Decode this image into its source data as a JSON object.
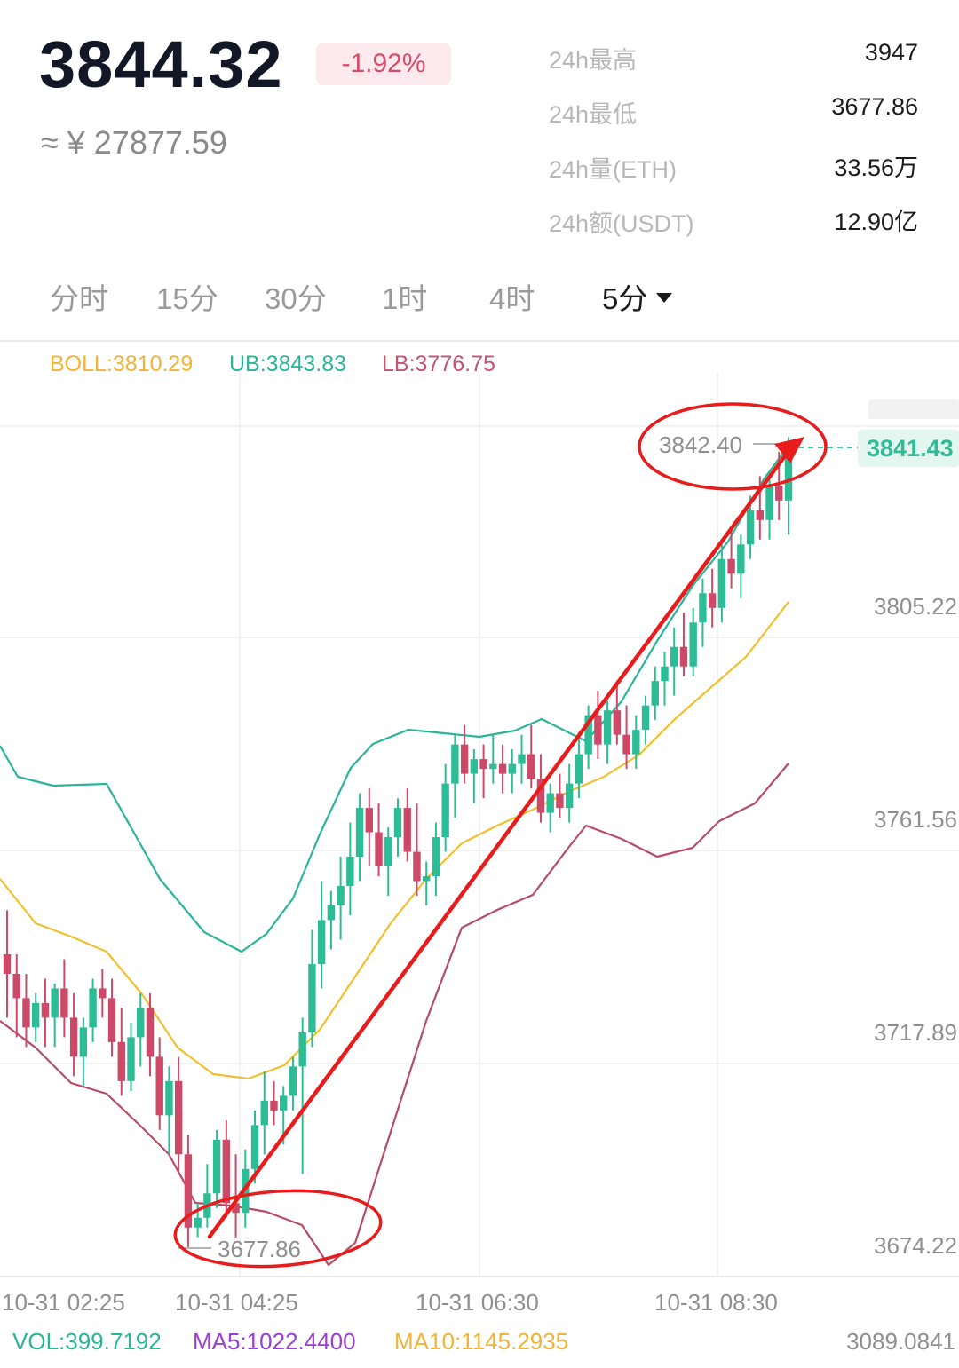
{
  "ticker": {
    "price": "3844.32",
    "change": "-1.92%",
    "cny": "≈ ¥ 27877.59"
  },
  "stats": [
    {
      "label": "24h最高",
      "value": "3947"
    },
    {
      "label": "24h最低",
      "value": "3677.86"
    },
    {
      "label": "24h量(ETH)",
      "value": "33.56万"
    },
    {
      "label": "24h额(USDT)",
      "value": "12.90亿"
    }
  ],
  "tabs": [
    {
      "label": "分时",
      "active": false
    },
    {
      "label": "15分",
      "active": false
    },
    {
      "label": "30分",
      "active": false
    },
    {
      "label": "1时",
      "active": false
    },
    {
      "label": "4时",
      "active": false
    },
    {
      "label": "5分",
      "active": true
    }
  ],
  "boll": {
    "boll": "BOLL:3810.29",
    "ub": "UB:3843.83",
    "lb": "LB:3776.75"
  },
  "colors": {
    "up": "#2dbd96",
    "down": "#cc4a68",
    "boll_mid": "#f0c02f",
    "boll_ub": "#2ab59a",
    "boll_lb": "#b84b66",
    "annotation": "#e81c1c",
    "vol_label": "#2ab59a",
    "ma5_label": "#9a3fd0",
    "ma10_label": "#f0b43c"
  },
  "chart_data": {
    "type": "candlestick",
    "y_ticks": [
      3805.22,
      3761.56,
      3717.89,
      3674.22
    ],
    "y_tick_labels": [
      "3805.22",
      "3761.56",
      "3717.89",
      "3674.22"
    ],
    "x_tick_labels": [
      "10-31 02:25",
      "10-31 04:25",
      "10-31 06:30",
      "10-31 08:30"
    ],
    "grid": true,
    "last_price": "3841.43",
    "high_marker": "3842.40",
    "low_marker": "3677.86",
    "annotation": "hand-drawn red ellipses around the 3677.86 low and the 3842.40 high, connected by a red arrow pointing up",
    "candles": [
      [
        3737,
        3746,
        3724,
        3733
      ],
      [
        3733,
        3737,
        3720,
        3728
      ],
      [
        3728,
        3733,
        3718,
        3722
      ],
      [
        3722,
        3729,
        3719,
        3727
      ],
      [
        3727,
        3732,
        3718,
        3724
      ],
      [
        3724,
        3731,
        3718,
        3730
      ],
      [
        3730,
        3736,
        3720,
        3724
      ],
      [
        3724,
        3729,
        3712,
        3716
      ],
      [
        3716,
        3724,
        3710,
        3722
      ],
      [
        3722,
        3732,
        3719,
        3730
      ],
      [
        3730,
        3734,
        3724,
        3728
      ],
      [
        3728,
        3732,
        3716,
        3719
      ],
      [
        3719,
        3726,
        3708,
        3711
      ],
      [
        3711,
        3723,
        3709,
        3720
      ],
      [
        3720,
        3729,
        3714,
        3726
      ],
      [
        3726,
        3729,
        3712,
        3716
      ],
      [
        3716,
        3720,
        3701,
        3704
      ],
      [
        3704,
        3714,
        3696,
        3711
      ],
      [
        3711,
        3716,
        3692,
        3696
      ],
      [
        3696,
        3700,
        3677,
        3681
      ],
      [
        3681,
        3686,
        3679,
        3683
      ],
      [
        3683,
        3694,
        3681,
        3688
      ],
      [
        3688,
        3701,
        3685,
        3699
      ],
      [
        3699,
        3703,
        3683,
        3686
      ],
      [
        3686,
        3696,
        3679,
        3684
      ],
      [
        3684,
        3697,
        3681,
        3693
      ],
      [
        3693,
        3705,
        3690,
        3702
      ],
      [
        3702,
        3713,
        3696,
        3707
      ],
      [
        3707,
        3711,
        3702,
        3705
      ],
      [
        3705,
        3710,
        3698,
        3708
      ],
      [
        3708,
        3716,
        3705,
        3714
      ],
      [
        3714,
        3724,
        3692,
        3721
      ],
      [
        3721,
        3742,
        3718,
        3735
      ],
      [
        3735,
        3752,
        3730,
        3744
      ],
      [
        3744,
        3750,
        3738,
        3747
      ],
      [
        3747,
        3757,
        3740,
        3751
      ],
      [
        3751,
        3764,
        3745,
        3757
      ],
      [
        3757,
        3770,
        3752,
        3767
      ],
      [
        3767,
        3771,
        3755,
        3762
      ],
      [
        3762,
        3768,
        3753,
        3755
      ],
      [
        3755,
        3763,
        3749,
        3761
      ],
      [
        3761,
        3769,
        3757,
        3767
      ],
      [
        3767,
        3771,
        3756,
        3758
      ],
      [
        3758,
        3768,
        3749,
        3752
      ],
      [
        3752,
        3756,
        3747,
        3753
      ],
      [
        3753,
        3764,
        3749,
        3761
      ],
      [
        3761,
        3776,
        3758,
        3772
      ],
      [
        3772,
        3782,
        3765,
        3780
      ],
      [
        3780,
        3784,
        3772,
        3774
      ],
      [
        3774,
        3779,
        3768,
        3777
      ],
      [
        3777,
        3780,
        3769,
        3775
      ],
      [
        3775,
        3782,
        3772,
        3776
      ],
      [
        3776,
        3780,
        3770,
        3774
      ],
      [
        3774,
        3779,
        3770,
        3776
      ],
      [
        3776,
        3782,
        3772,
        3778
      ],
      [
        3778,
        3784,
        3771,
        3773
      ],
      [
        3773,
        3778,
        3764,
        3766
      ],
      [
        3766,
        3772,
        3762,
        3770
      ],
      [
        3770,
        3774,
        3765,
        3767
      ],
      [
        3767,
        3776,
        3764,
        3772
      ],
      [
        3772,
        3781,
        3769,
        3778
      ],
      [
        3778,
        3788,
        3775,
        3786
      ],
      [
        3786,
        3791,
        3777,
        3780
      ],
      [
        3780,
        3789,
        3776,
        3787
      ],
      [
        3787,
        3793,
        3780,
        3782
      ],
      [
        3782,
        3788,
        3775,
        3778
      ],
      [
        3778,
        3786,
        3775,
        3783
      ],
      [
        3783,
        3790,
        3780,
        3788
      ],
      [
        3788,
        3796,
        3785,
        3793
      ],
      [
        3793,
        3799,
        3788,
        3796
      ],
      [
        3796,
        3804,
        3790,
        3800
      ],
      [
        3800,
        3807,
        3794,
        3796
      ],
      [
        3796,
        3808,
        3794,
        3805
      ],
      [
        3805,
        3814,
        3800,
        3811
      ],
      [
        3811,
        3816,
        3804,
        3808
      ],
      [
        3808,
        3821,
        3805,
        3818
      ],
      [
        3818,
        3824,
        3812,
        3815
      ],
      [
        3815,
        3823,
        3810,
        3821
      ],
      [
        3821,
        3831,
        3818,
        3828
      ],
      [
        3828,
        3835,
        3822,
        3826
      ],
      [
        3826,
        3836,
        3822,
        3833
      ],
      [
        3833,
        3840,
        3826,
        3830
      ],
      [
        3830,
        3843,
        3823,
        3841
      ]
    ]
  },
  "indicators": {
    "vol": "VOL:399.7192",
    "ma5": "MA5:1022.4400",
    "ma10": "MA10:1145.2935",
    "vol_axis": "3089.0841"
  }
}
